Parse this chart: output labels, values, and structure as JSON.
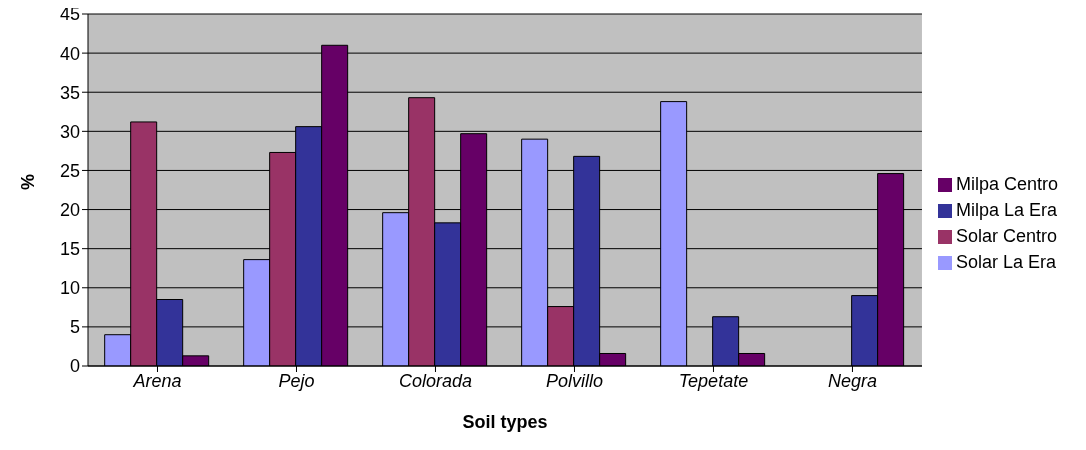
{
  "chart_data": {
    "type": "bar",
    "xlabel": "Soil types",
    "ylabel": "%",
    "categories": [
      "Arena",
      "Pejo",
      "Colorada",
      "Polvillo",
      "Tepetate",
      "Negra"
    ],
    "series": [
      {
        "name": "Solar La Era",
        "color": "#9999ff",
        "values": [
          4,
          13.6,
          19.6,
          29,
          33.8,
          0
        ]
      },
      {
        "name": "Solar Centro",
        "color": "#993366",
        "values": [
          31.2,
          27.3,
          34.3,
          7.6,
          0,
          0
        ]
      },
      {
        "name": "Milpa La Era",
        "color": "#333399",
        "values": [
          8.5,
          30.6,
          18.3,
          26.8,
          6.3,
          9
        ]
      },
      {
        "name": "Milpa Centro",
        "color": "#660066",
        "values": [
          1.3,
          41,
          29.7,
          1.6,
          1.6,
          24.6
        ]
      }
    ],
    "ylim": [
      0,
      45
    ],
    "yticks": [
      0,
      5,
      10,
      15,
      20,
      25,
      30,
      35,
      40,
      45
    ],
    "grid": "y",
    "legend": "right"
  }
}
